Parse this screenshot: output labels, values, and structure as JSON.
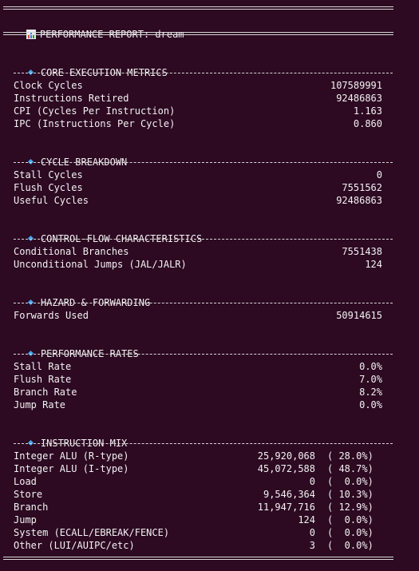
{
  "report": {
    "title": "PERFORMANCE REPORT: dream",
    "title_icon": "bar-chart-icon"
  },
  "colors": {
    "background": "#2d0922",
    "text": "#f2f2f2",
    "bullet": "#3da9f5"
  },
  "sections": {
    "core": {
      "header": "CORE EXECUTION METRICS",
      "rows": [
        {
          "label": "Clock Cycles",
          "value": "107589991"
        },
        {
          "label": "Instructions Retired",
          "value": "92486863"
        },
        {
          "label": "CPI (Cycles Per Instruction)",
          "value": "1.163"
        },
        {
          "label": "IPC (Instructions Per Cycle)",
          "value": "0.860"
        }
      ]
    },
    "cycle": {
      "header": "CYCLE BREAKDOWN",
      "rows": [
        {
          "label": "Stall Cycles",
          "value": "0"
        },
        {
          "label": "Flush Cycles",
          "value": "7551562"
        },
        {
          "label": "Useful Cycles",
          "value": "92486863"
        }
      ]
    },
    "control": {
      "header": "CONTROL-FLOW CHARACTERISTICS",
      "rows": [
        {
          "label": "Conditional Branches",
          "value": "7551438"
        },
        {
          "label": "Unconditional Jumps (JAL/JALR)",
          "value": "124"
        }
      ]
    },
    "hazard": {
      "header": "HAZARD & FORWARDING",
      "rows": [
        {
          "label": "Forwards Used",
          "value": "50914615"
        }
      ]
    },
    "rates": {
      "header": "PERFORMANCE RATES",
      "rows": [
        {
          "label": "Stall Rate",
          "value": "0.0%"
        },
        {
          "label": "Flush Rate",
          "value": "7.0%"
        },
        {
          "label": "Branch Rate",
          "value": "8.2%"
        },
        {
          "label": "Jump Rate",
          "value": "0.0%"
        }
      ]
    },
    "mix": {
      "header": "INSTRUCTION MIX",
      "rows": [
        {
          "label": "Integer ALU (R-type)",
          "count": "25,920,068",
          "pct": "( 28.0%)"
        },
        {
          "label": "Integer ALU (I-type)",
          "count": "45,072,588",
          "pct": "( 48.7%)"
        },
        {
          "label": "Load",
          "count": "0",
          "pct": "(  0.0%)"
        },
        {
          "label": "Store",
          "count": "9,546,364",
          "pct": "( 10.3%)"
        },
        {
          "label": "Branch",
          "count": "11,947,716",
          "pct": "( 12.9%)"
        },
        {
          "label": "Jump",
          "count": "124",
          "pct": "(  0.0%)"
        },
        {
          "label": "System (ECALL/EBREAK/FENCE)",
          "count": "0",
          "pct": "(  0.0%)"
        },
        {
          "label": "Other (LUI/AUIPC/etc)",
          "count": "3",
          "pct": "(  0.0%)"
        }
      ]
    }
  }
}
